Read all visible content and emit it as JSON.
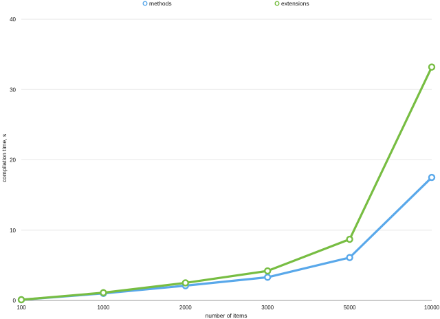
{
  "chart_data": {
    "type": "line",
    "title": "",
    "xlabel": "number of items",
    "ylabel": "compilation time, s",
    "categories": [
      "100",
      "1000",
      "2000",
      "3000",
      "5000",
      "10000"
    ],
    "ylim": [
      0,
      40
    ],
    "yticks": [
      "0",
      "10",
      "20",
      "30",
      "40"
    ],
    "grid": true,
    "legend_position": "top-center",
    "series": [
      {
        "name": "methods",
        "color": "#59a8ea",
        "values": [
          0.1,
          1.0,
          2.1,
          3.3,
          6.1,
          17.5
        ]
      },
      {
        "name": "extensions",
        "color": "#77bd42",
        "values": [
          0.1,
          1.1,
          2.5,
          4.2,
          8.7,
          33.2
        ]
      }
    ]
  }
}
